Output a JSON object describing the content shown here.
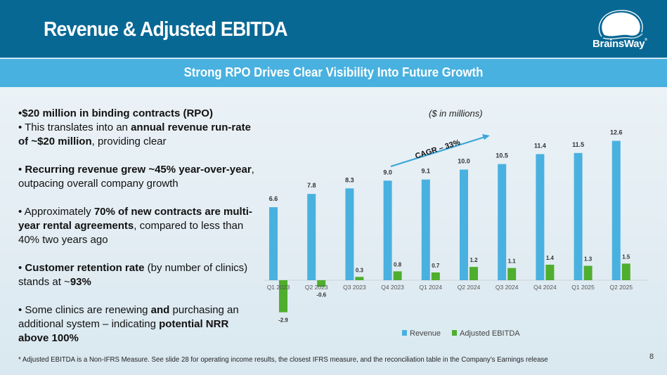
{
  "header": {
    "title": "Revenue & Adjusted EBITDA",
    "logo_text": "BrainsWay",
    "logo_mark": "®"
  },
  "subtitle": "Strong RPO Drives Clear Visibility Into Future Growth",
  "bullets": [
    {
      "segments": [
        {
          "t": "•$20 million in binding contracts (RPO)",
          "b": true
        }
      ]
    },
    {
      "segments": [
        {
          "t": "• This translates into an ",
          "b": false
        },
        {
          "t": "annual revenue run-rate of ~$20 million",
          "b": true
        },
        {
          "t": ", providing clear",
          "b": false
        }
      ]
    },
    {
      "segments": [
        {
          "t": "• ",
          "b": false
        },
        {
          "t": "Recurring revenue grew ~45% year-over-year",
          "b": true
        },
        {
          "t": ", outpacing overall company growth",
          "b": false
        }
      ]
    },
    {
      "segments": [
        {
          "t": "• Approximately ",
          "b": false
        },
        {
          "t": "70% of new contracts are multi-year rental agreements",
          "b": true
        },
        {
          "t": ", compared to less than 40% two years ago",
          "b": false
        }
      ]
    },
    {
      "segments": [
        {
          "t": "• ",
          "b": false
        },
        {
          "t": "Customer retention rate",
          "b": true
        },
        {
          "t": " (by number of clinics) stands at ~",
          "b": false
        },
        {
          "t": "93%",
          "b": true
        }
      ]
    },
    {
      "segments": [
        {
          "t": "• Some clinics are renewing ",
          "b": false
        },
        {
          "t": "and",
          "b": true
        },
        {
          "t": " purchasing an additional system – indicating ",
          "b": false
        },
        {
          "t": "potential NRR above 100%",
          "b": true
        }
      ]
    }
  ],
  "units_label": "($ in millions)",
  "chart_data": {
    "type": "bar",
    "title": "",
    "xlabel": "",
    "ylabel": "",
    "categories": [
      "Q1 2023",
      "Q2 2023",
      "Q3 2023",
      "Q4 2023",
      "Q1 2024",
      "Q2 2024",
      "Q3 2024",
      "Q4 2024",
      "Q1 2025",
      "Q2 2025"
    ],
    "series": [
      {
        "name": "Revenue",
        "color": "#49b1df",
        "values": [
          6.6,
          7.8,
          8.3,
          9.0,
          9.1,
          10.0,
          10.5,
          11.4,
          11.5,
          12.6
        ],
        "labels": [
          "6.6",
          "7.8",
          "8.3",
          "9.0",
          "9.1",
          "10.0",
          "10.5",
          "11.4",
          "11.5",
          "12.6"
        ]
      },
      {
        "name": "Adjusted EBITDA",
        "color": "#4fae2e",
        "values": [
          -2.9,
          -0.6,
          0.3,
          0.8,
          0.7,
          1.2,
          1.1,
          1.4,
          1.3,
          1.5
        ],
        "labels": [
          "-2.9",
          "-0.6",
          "0.3",
          "0.8",
          "0.7",
          "1.2",
          "1.1",
          "1.4",
          "1.3",
          "1.5"
        ]
      }
    ],
    "ylim": [
      -3.5,
      13.5
    ],
    "grid": false,
    "legend": "bottom",
    "annotation": {
      "text": "CAGR – 33%",
      "from_category": "Q4 2023",
      "to_category": "Q2 2024",
      "style": "arrow"
    }
  },
  "footnote": "* Adjusted EBITDA is a Non-IFRS Measure. See slide 28 for operating income results, the closest IFRS measure, and the reconciliation table in the Company’s Earnings release",
  "page_number": "8"
}
